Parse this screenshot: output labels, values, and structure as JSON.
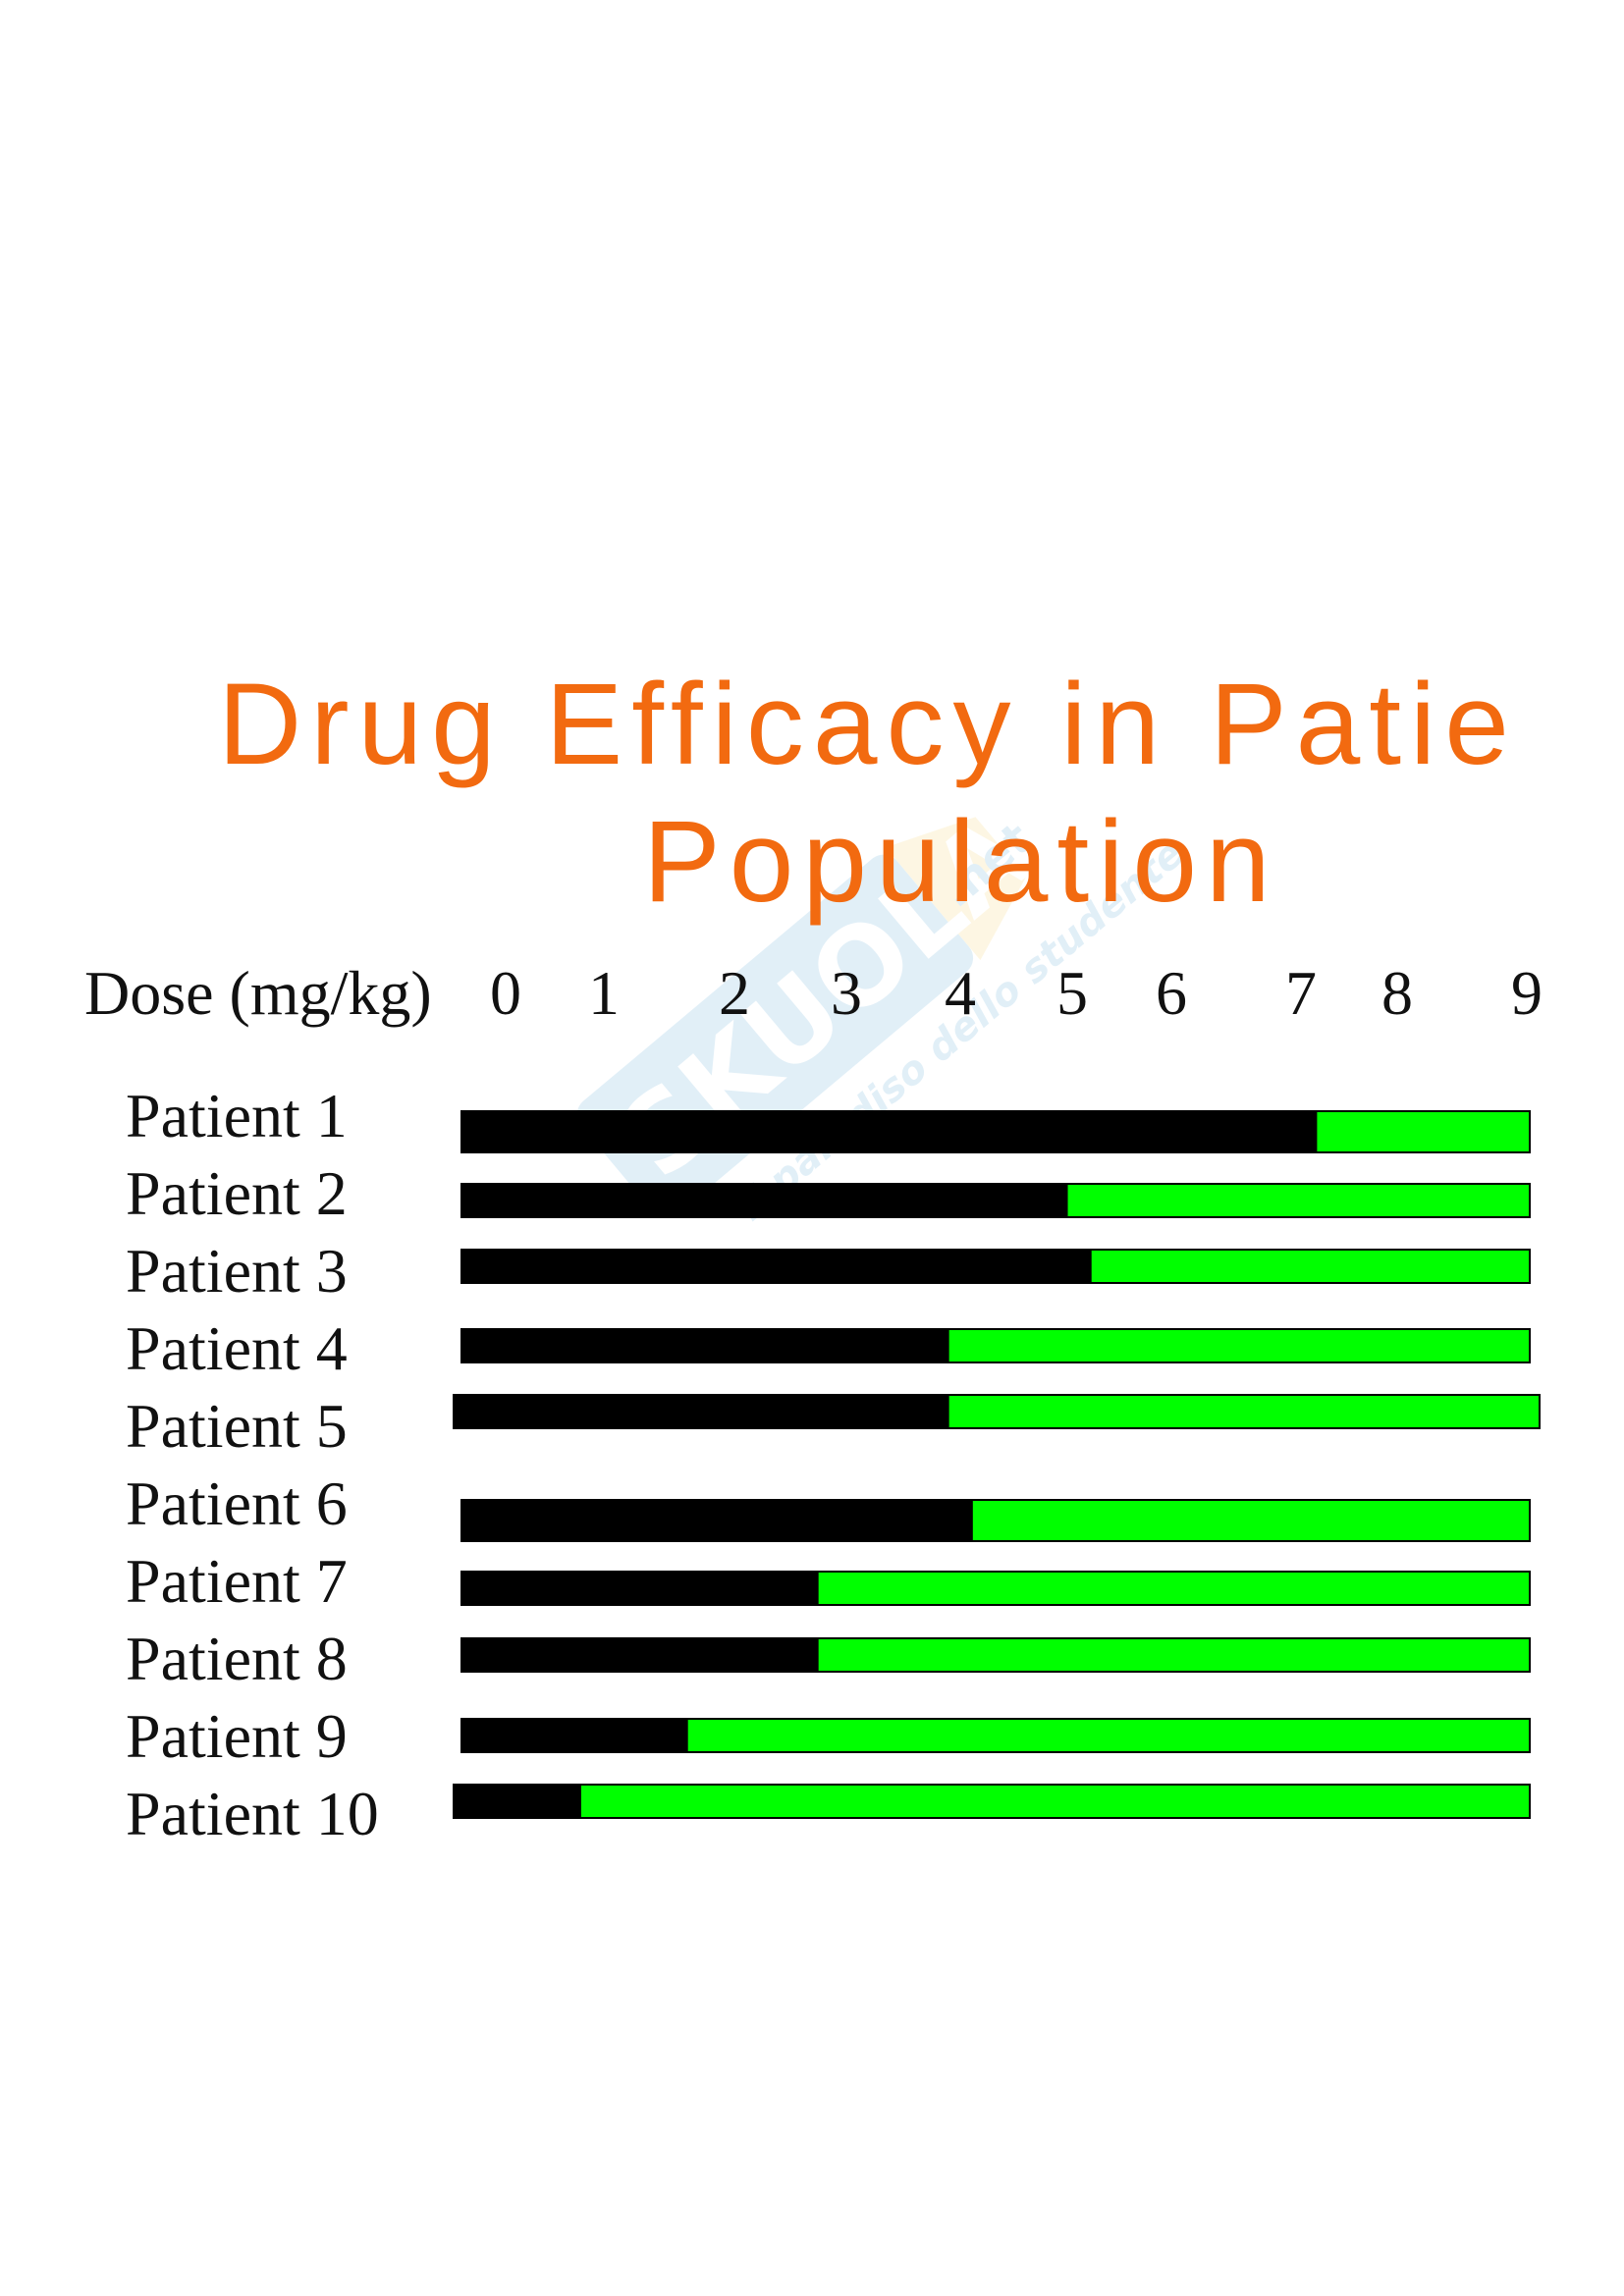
{
  "colors": {
    "title": "#f26a10",
    "ineffective": "#000000",
    "effective": "#00ff00",
    "text": "#111111"
  },
  "chart_data": {
    "type": "bar",
    "orientation": "horizontal",
    "stacked": true,
    "title": "Drug Efficacy in Patie",
    "title_line2": "Population",
    "xlabel": "Dose (mg/kg)",
    "x_ticks": [
      "0",
      "1",
      "2",
      "3",
      "4",
      "5",
      "6",
      "7",
      "8",
      "9"
    ],
    "xlim": [
      0,
      9
    ],
    "grid": false,
    "categories": [
      "Patient 1",
      "Patient 2",
      "Patient 3",
      "Patient 4",
      "Patient 5",
      "Patient 6",
      "Patient 7",
      "Patient 8",
      "Patient 9",
      "Patient 10"
    ],
    "segments": [
      {
        "color_key": "ineffective",
        "values": [
          7.2,
          5.1,
          5.3,
          4.1,
          4.1,
          4.3,
          3.0,
          3.0,
          1.9,
          1.0
        ]
      },
      {
        "color_key": "effective",
        "values": [
          1.8,
          3.9,
          3.7,
          4.9,
          4.9,
          4.7,
          6.0,
          6.0,
          7.1,
          8.0
        ]
      }
    ]
  },
  "watermark": {
    "brand": "SKUOLA",
    "domain": ".net",
    "tagline": "il paradiso dello studente"
  }
}
